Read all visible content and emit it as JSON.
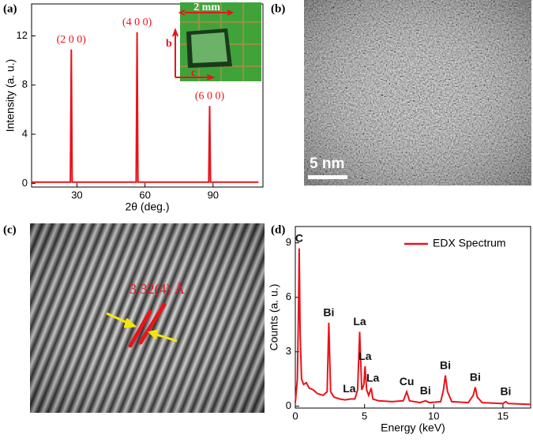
{
  "panel_labels": [
    "(a)",
    "(b)",
    "(c)",
    "(d)"
  ],
  "chart_data": [
    {
      "type": "line",
      "xlabel": "2θ (deg.)",
      "ylabel": "Intensity (a. u.)",
      "xlim": [
        10,
        112
      ],
      "xticks": [
        30,
        60,
        90
      ],
      "ylim": [
        -0.3,
        14.6
      ],
      "yticks": [
        0,
        4,
        8,
        12
      ],
      "series": [
        {
          "color": "#e8141b",
          "x": [
            10,
            27.1,
            27.5,
            27.9,
            56.1,
            56.5,
            56.9,
            88.1,
            88.5,
            88.9,
            110
          ],
          "values": [
            0.1,
            0.1,
            10.9,
            0.1,
            0.1,
            12.3,
            0.1,
            0.1,
            6.3,
            0.1,
            0.1
          ]
        }
      ],
      "annotations": [
        {
          "text": "(2 0 0)",
          "x": 27.5,
          "y": 10.9
        },
        {
          "text": "(4 0 0)",
          "x": 56.5,
          "y": 12.3
        },
        {
          "text": "(6 0 0)",
          "x": 88.5,
          "y": 6.3
        }
      ],
      "inset": {
        "scale": "2 mm",
        "axis_b": "b",
        "axis_c": "c"
      }
    },
    {
      "type": "line",
      "xlabel": "Energy (keV)",
      "ylabel": "Counts (a. u.)",
      "xlim": [
        0,
        17
      ],
      "xticks": [
        0,
        5,
        10,
        15
      ],
      "ylim": [
        -0.1,
        9.9
      ],
      "yticks": [
        0,
        3,
        6,
        9
      ],
      "legend": "upper right",
      "series": [
        {
          "name": "EDX Spectrum",
          "color": "#e8141b",
          "x": [
            0,
            0.15,
            0.22,
            0.28,
            0.35,
            0.45,
            0.6,
            0.8,
            1.0,
            1.3,
            1.6,
            2.0,
            2.3,
            2.42,
            2.55,
            2.8,
            3.2,
            3.6,
            4.0,
            4.3,
            4.5,
            4.65,
            4.8,
            4.95,
            5.04,
            5.15,
            5.3,
            5.48,
            5.6,
            6.0,
            7.0,
            7.8,
            8.05,
            8.25,
            9.0,
            9.4,
            9.7,
            10.5,
            10.7,
            10.84,
            11.0,
            11.3,
            12.5,
            12.85,
            13.0,
            13.15,
            13.5,
            15.0,
            15.2,
            15.4,
            17
          ],
          "values": [
            0.2,
            1.5,
            5,
            8.7,
            4,
            1.5,
            1.2,
            1.3,
            1.0,
            0.9,
            0.7,
            0.6,
            0.8,
            4.6,
            0.8,
            0.5,
            0.4,
            0.35,
            0.4,
            0.4,
            0.9,
            4.1,
            0.9,
            1.2,
            2.2,
            0.9,
            0.6,
            1.0,
            0.4,
            0.3,
            0.25,
            0.3,
            0.8,
            0.3,
            0.2,
            0.3,
            0.2,
            0.25,
            0.9,
            1.7,
            0.8,
            0.25,
            0.2,
            0.6,
            1.05,
            0.5,
            0.2,
            0.15,
            0.25,
            0.15,
            0.1
          ]
        }
      ],
      "annotations": [
        {
          "text": "C",
          "x": 0.28,
          "y": 8.7
        },
        {
          "text": "Bi",
          "x": 2.42,
          "y": 4.6
        },
        {
          "text": "La",
          "x": 4.65,
          "y": 4.1
        },
        {
          "text": "La",
          "x": 5.04,
          "y": 2.2
        },
        {
          "text": "La",
          "x": 5.6,
          "y": 1.0
        },
        {
          "text": "La",
          "x": 3.9,
          "y": 0.4
        },
        {
          "text": "Cu",
          "x": 8.05,
          "y": 0.8
        },
        {
          "text": "Bi",
          "x": 9.4,
          "y": 0.3
        },
        {
          "text": "Bi",
          "x": 10.84,
          "y": 1.7
        },
        {
          "text": "Bi",
          "x": 13.0,
          "y": 1.05
        },
        {
          "text": "Bi",
          "x": 15.2,
          "y": 0.25
        }
      ]
    }
  ],
  "images": {
    "b": {
      "scale_bar": "5 nm"
    },
    "c": {
      "spacing": "3.32(4) Å"
    }
  }
}
